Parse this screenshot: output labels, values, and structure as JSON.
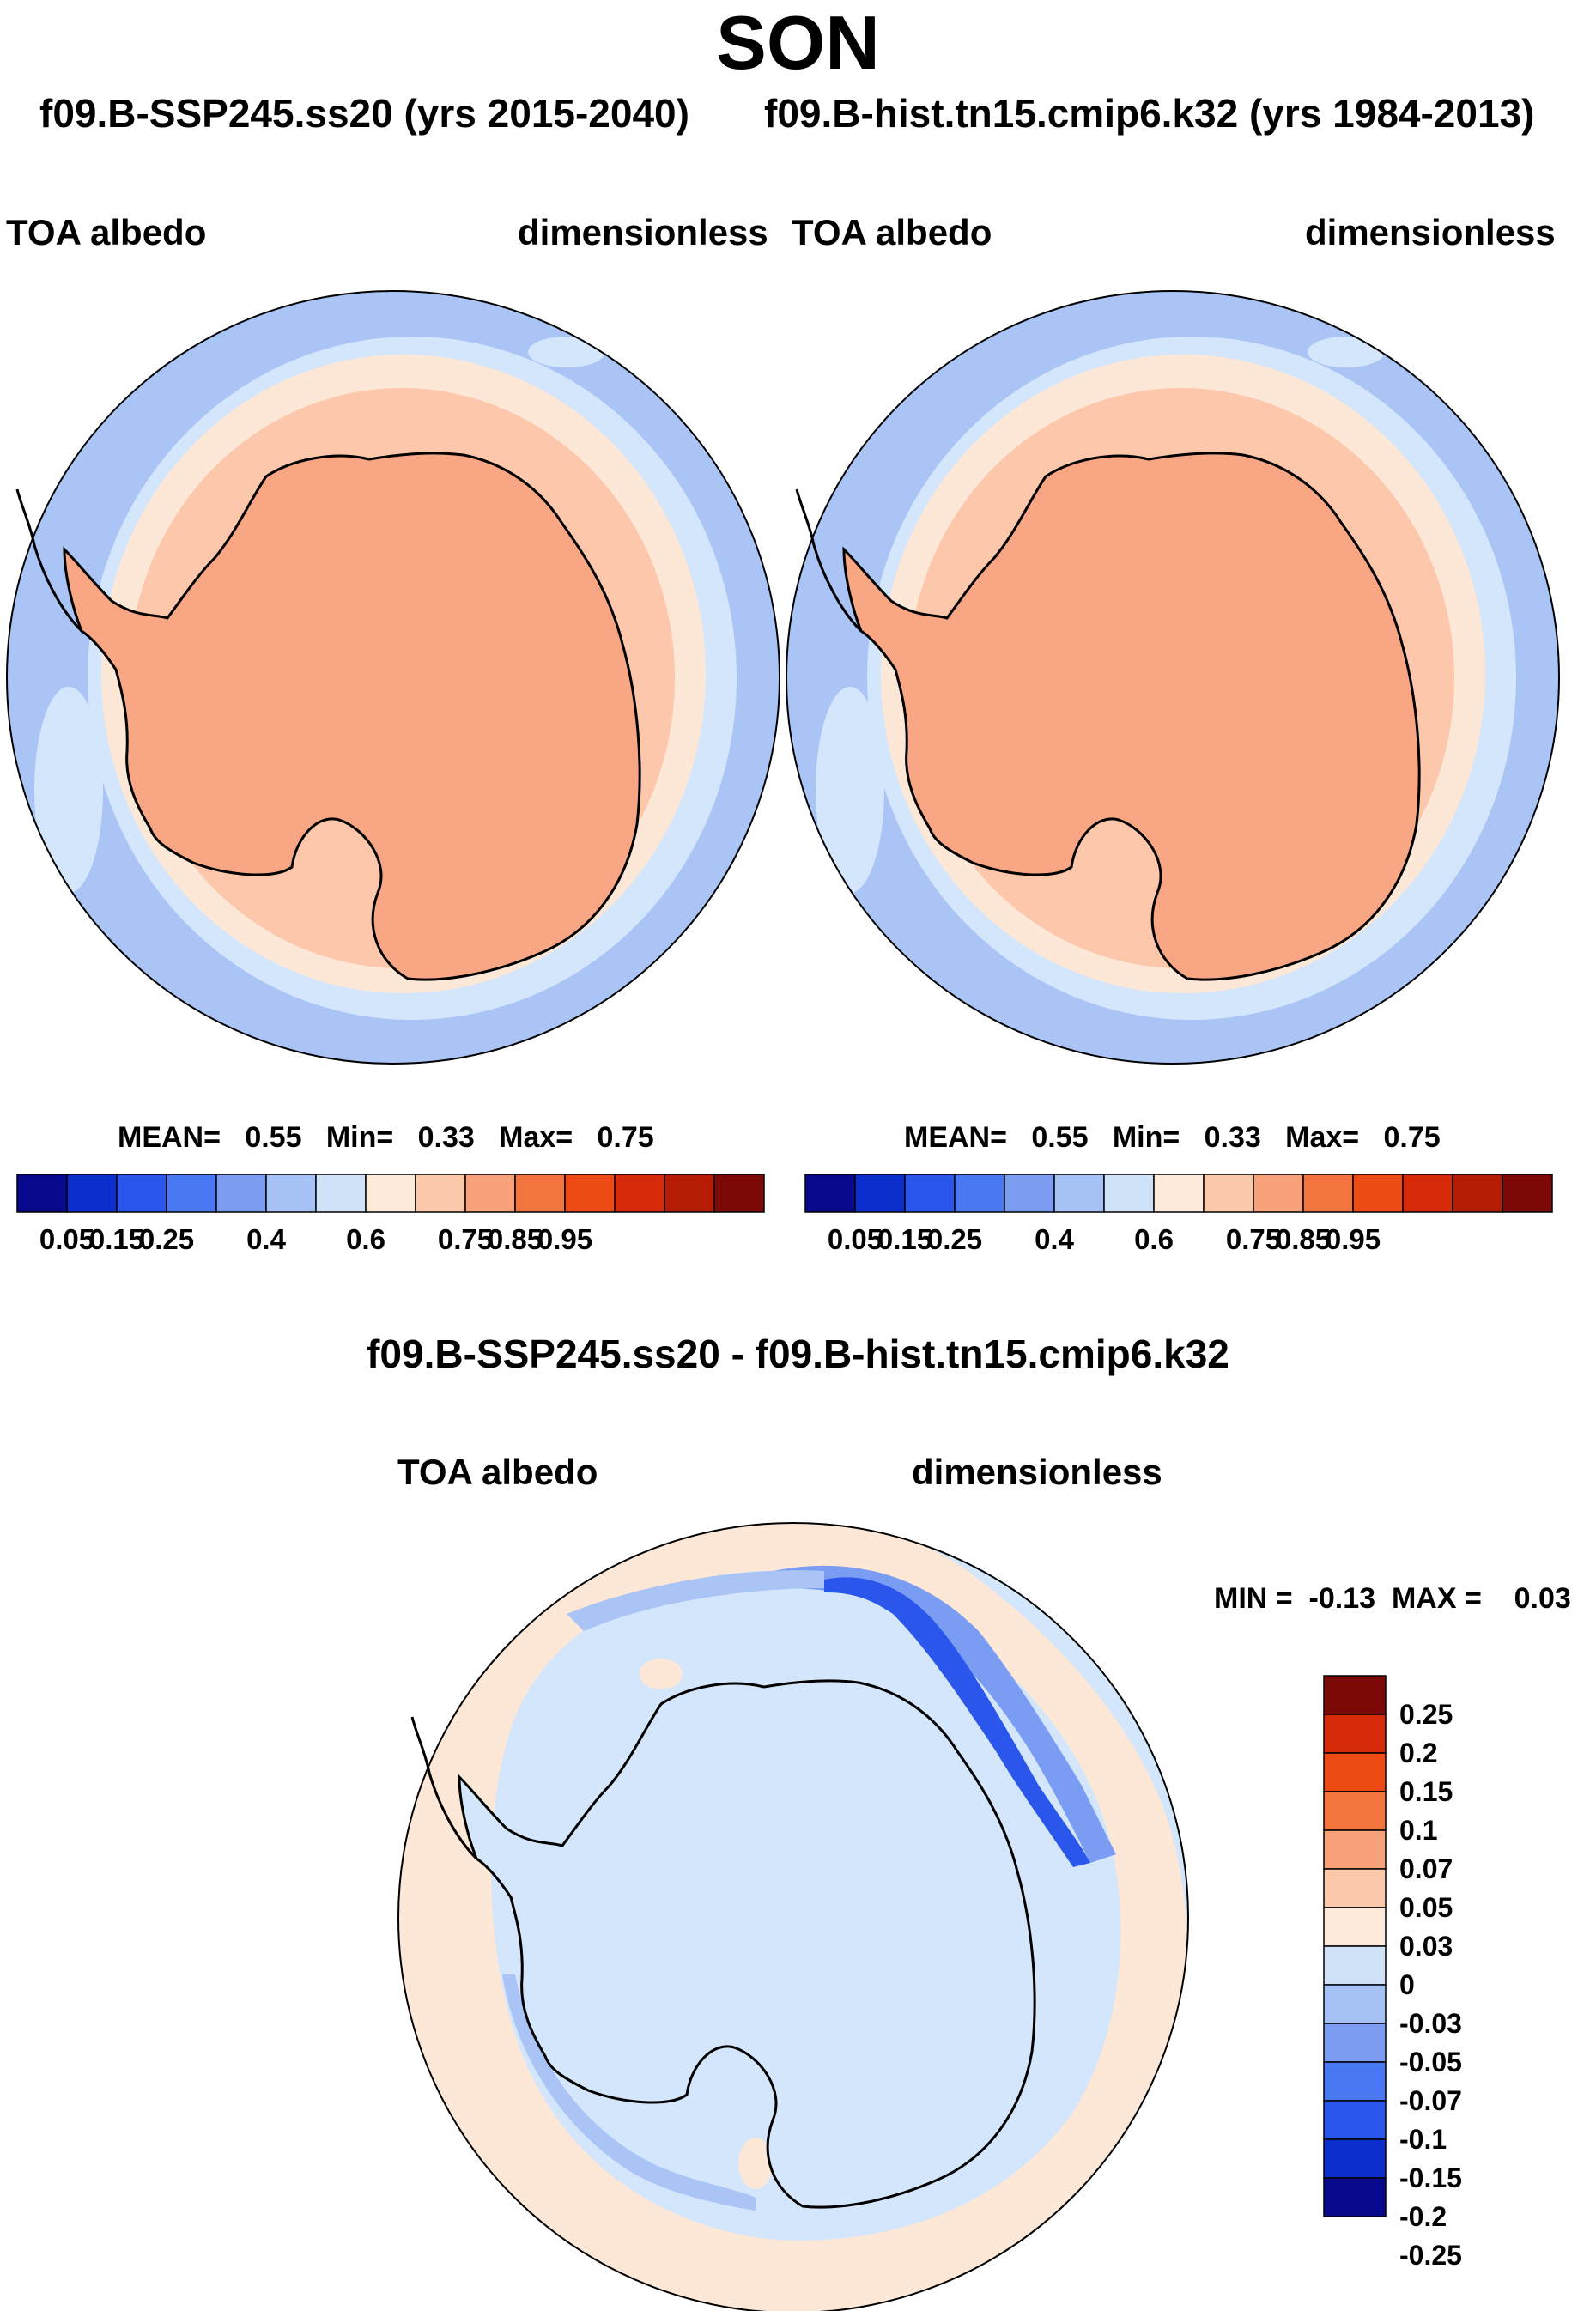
{
  "figure": {
    "season": "SON",
    "case_left": "f09.B-SSP245.ss20 (yrs 2015-2040)",
    "case_right": "f09.B-hist.tn15.cmip6.k32 (yrs 1984-2013)",
    "diff_title": "f09.B-SSP245.ss20 - f09.B-hist.tn15.cmip6.k32"
  },
  "panels": {
    "left": {
      "variable": "TOA albedo",
      "units": "dimensionless",
      "mean_label": "MEAN=",
      "mean": "0.55",
      "min_label": "Min=",
      "min": "0.33",
      "max_label": "Max=",
      "max": "0.75"
    },
    "right": {
      "variable": "TOA albedo",
      "units": "dimensionless",
      "mean_label": "MEAN=",
      "mean": "0.55",
      "min_label": "Min=",
      "min": "0.33",
      "max_label": "Max=",
      "max": "0.75"
    },
    "diff": {
      "variable": "TOA albedo",
      "units": "dimensionless",
      "min_label": "MIN =",
      "min": "-0.13",
      "max_label": "MAX =",
      "max": "0.03"
    }
  },
  "colorbar_abs": {
    "colors": [
      "#08088c",
      "#0c2ecc",
      "#2a56ec",
      "#4a78f2",
      "#7c9cf2",
      "#a6c2f4",
      "#d0e2f8",
      "#fdeadb",
      "#fcc8aa",
      "#f7a07a",
      "#f4743e",
      "#ee4a14",
      "#d62a08",
      "#b41c04",
      "#7d0808"
    ],
    "tick_labels": [
      "0.05",
      "0.15",
      "0.25",
      "0.4",
      "0.6",
      "0.75",
      "0.85",
      "0.95"
    ]
  },
  "colorbar_diff": {
    "colors": [
      "#08088c",
      "#0c2ecc",
      "#2a56ec",
      "#4a78f2",
      "#7c9cf2",
      "#a6c2f4",
      "#d0e2f8",
      "#fdeadb",
      "#fcc8aa",
      "#f7a07a",
      "#f4743e",
      "#ee4a14",
      "#d62a08",
      "#7d0808"
    ],
    "tick_labels": [
      "0.25",
      "0.2",
      "0.15",
      "0.1",
      "0.07",
      "0.05",
      "0.03",
      "0",
      "-0.03",
      "-0.05",
      "-0.07",
      "-0.1",
      "-0.15",
      "-0.2",
      "-0.25"
    ]
  },
  "map_colors": {
    "ocean_far": "#a9c4f5",
    "ocean_mid": "#d4e6fb",
    "ice_outer": "#fde7d6",
    "ice_inner": "#fcc7ab",
    "continent": "#f8a683",
    "diff_background": "#d4e6fb",
    "diff_positive": "#fde7d6",
    "diff_neg1": "#aac4f5",
    "diff_neg2": "#7a9cf2",
    "diff_neg3": "#2a56ec",
    "coast": "#000000"
  }
}
